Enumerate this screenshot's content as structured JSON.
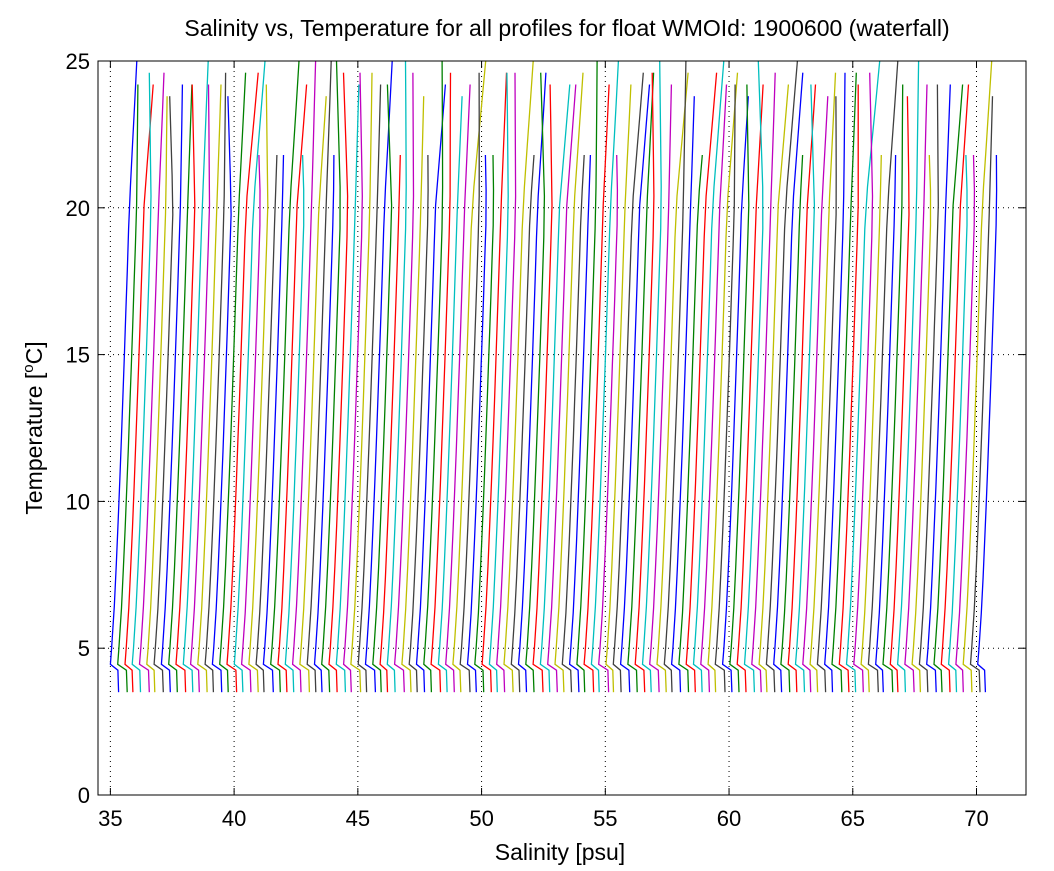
{
  "chart_data": {
    "type": "line",
    "title": "Salinity vs, Temperature for all profiles for float WMOId: 1900600 (waterfall)",
    "xlabel": "Salinity [psu]",
    "ylabel_main": "Temperature [",
    "ylabel_sup": "o",
    "ylabel_end": "C]",
    "xlim": [
      34.5,
      72
    ],
    "ylim": [
      0,
      25
    ],
    "xticks": [
      35,
      40,
      45,
      50,
      55,
      60,
      65,
      70
    ],
    "yticks": [
      0,
      5,
      10,
      15,
      20,
      25
    ],
    "grid": true,
    "waterfall": {
      "profile_count": 120,
      "first_offset_psu": 35.05,
      "last_offset_psu": 70.1,
      "surface_temperature": 25,
      "bottom_temperature": 3.5,
      "mixed_layer_temperature": 4.4,
      "colors": [
        "#0000ff",
        "#008000",
        "#ff0000",
        "#00bfbf",
        "#bf00bf",
        "#bfbf00",
        "#404040"
      ]
    }
  }
}
